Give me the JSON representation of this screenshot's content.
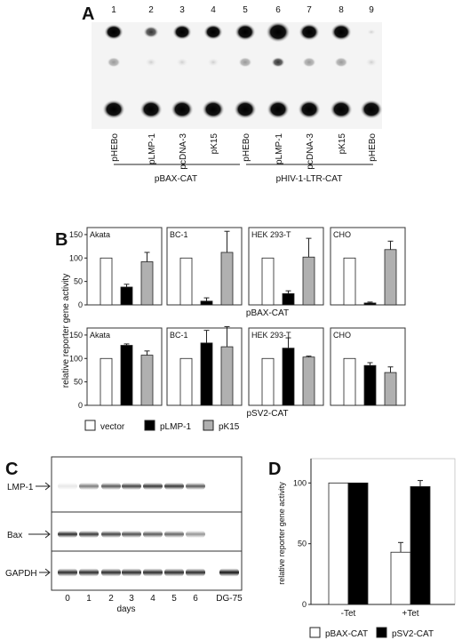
{
  "panel_a": {
    "label": "A",
    "lane_numbers": [
      "1",
      "2",
      "3",
      "4",
      "5",
      "6",
      "7",
      "8",
      "9"
    ],
    "lane_labels": [
      "pHEBo",
      "pLMP-1",
      "pcDNA-3",
      "pK15",
      "pHEBo",
      "pLMP-1",
      "pcDNA-3",
      "pK15",
      "pHEBo"
    ],
    "group_labels": [
      "pBAX-CAT",
      "pHIV-1-LTR-CAT"
    ]
  },
  "panel_b": {
    "label": "B",
    "ylabel": "relative reporter gene activity",
    "row_labels": [
      "pBAX-CAT",
      "pSV2-CAT"
    ],
    "legend": [
      "vector",
      "pLMP-1",
      "pK15"
    ],
    "colors": {
      "vector": "#ffffff",
      "pLMP-1": "#000000",
      "pK15": "#b0b0b0"
    }
  },
  "panel_c": {
    "label": "C",
    "row_labels": [
      "LMP-1",
      "Bax",
      "GAPDH"
    ],
    "lane_labels": [
      "0",
      "1",
      "2",
      "3",
      "4",
      "5",
      "6",
      "DG-75"
    ],
    "xlabel": "days"
  },
  "panel_d": {
    "label": "D",
    "ylabel": "relative reporter gene activity",
    "legend": [
      "pBAX-CAT",
      "pSV2-CAT"
    ]
  },
  "chart_data": [
    {
      "type": "bar",
      "row": "pBAX-CAT",
      "panels": [
        {
          "title": "Akata",
          "series": [
            {
              "name": "vector",
              "values": [
                100
              ]
            },
            {
              "name": "pLMP-1",
              "values": [
                38
              ]
            },
            {
              "name": "pK15",
              "values": [
                92
              ]
            }
          ],
          "errors": [
            0,
            6,
            20
          ]
        },
        {
          "title": "BC-1",
          "series": [
            {
              "name": "vector",
              "values": [
                100
              ]
            },
            {
              "name": "pLMP-1",
              "values": [
                8
              ]
            },
            {
              "name": "pK15",
              "values": [
                112
              ]
            }
          ],
          "errors": [
            0,
            7,
            45
          ]
        },
        {
          "title": "HEK 293-T",
          "series": [
            {
              "name": "vector",
              "values": [
                100
              ]
            },
            {
              "name": "pLMP-1",
              "values": [
                24
              ]
            },
            {
              "name": "pK15",
              "values": [
                102
              ]
            }
          ],
          "errors": [
            0,
            6,
            40
          ]
        },
        {
          "title": "CHO",
          "series": [
            {
              "name": "vector",
              "values": [
                100
              ]
            },
            {
              "name": "pLMP-1",
              "values": [
                4
              ]
            },
            {
              "name": "pK15",
              "values": [
                118
              ]
            }
          ],
          "errors": [
            0,
            2,
            18
          ]
        }
      ],
      "yticks": [
        0,
        50,
        100,
        150
      ],
      "ylim": [
        0,
        165
      ]
    },
    {
      "type": "bar",
      "row": "pSV2-CAT",
      "panels": [
        {
          "title": "Akata",
          "series": [
            {
              "name": "vector",
              "values": [
                100
              ]
            },
            {
              "name": "pLMP-1",
              "values": [
                128
              ]
            },
            {
              "name": "pK15",
              "values": [
                107
              ]
            }
          ],
          "errors": [
            0,
            3,
            9
          ]
        },
        {
          "title": "BC-1",
          "series": [
            {
              "name": "vector",
              "values": [
                100
              ]
            },
            {
              "name": "pLMP-1",
              "values": [
                133
              ]
            },
            {
              "name": "pK15",
              "values": [
                125
              ]
            }
          ],
          "errors": [
            0,
            27,
            43
          ]
        },
        {
          "title": "HEK 293-T",
          "series": [
            {
              "name": "vector",
              "values": [
                100
              ]
            },
            {
              "name": "pLMP-1",
              "values": [
                122
              ]
            },
            {
              "name": "pK15",
              "values": [
                103
              ]
            }
          ],
          "errors": [
            0,
            22,
            2
          ]
        },
        {
          "title": "CHO",
          "series": [
            {
              "name": "vector",
              "values": [
                100
              ]
            },
            {
              "name": "pLMP-1",
              "values": [
                85
              ]
            },
            {
              "name": "pK15",
              "values": [
                70
              ]
            }
          ],
          "errors": [
            0,
            6,
            12
          ]
        }
      ],
      "yticks": [
        0,
        50,
        100,
        150
      ],
      "ylim": [
        0,
        165
      ]
    },
    {
      "type": "bar",
      "panel": "D",
      "categories": [
        "-Tet",
        "+Tet"
      ],
      "series": [
        {
          "name": "pBAX-CAT",
          "values": [
            100,
            43
          ]
        },
        {
          "name": "pSV2-CAT",
          "values": [
            100,
            97
          ]
        }
      ],
      "errors": [
        [
          0,
          8
        ],
        [
          0,
          5
        ]
      ],
      "yticks": [
        0,
        50,
        100
      ],
      "ylim": [
        0,
        120
      ]
    }
  ]
}
